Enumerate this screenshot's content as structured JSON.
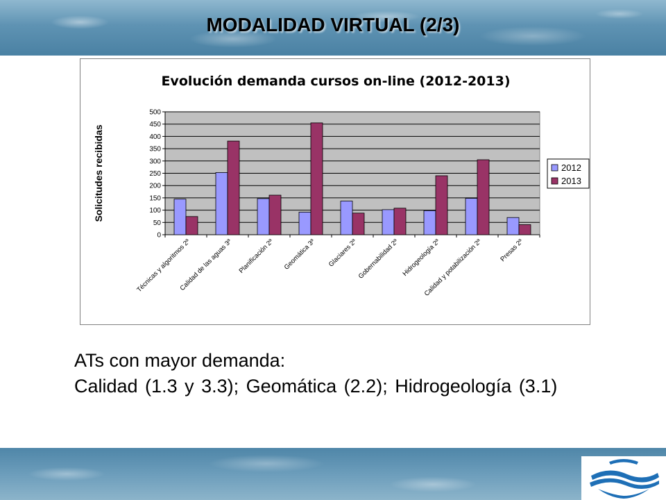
{
  "slide": {
    "title": "MODALIDAD VIRTUAL (2/3)",
    "summary_line1": "ATs con mayor demanda:",
    "summary_line2": "Calidad (1.3 y 3.3); Geomática (2.2); Hidrogeología (3.1)"
  },
  "colors": {
    "series_2012": "#9999ff",
    "series_2013": "#993366",
    "plot_bg": "#c0c0c0",
    "logo_blue": "#1e6fb6"
  },
  "logo": {
    "icon": "water-waves-logo-icon"
  },
  "chart_data": {
    "type": "bar",
    "title": "Evolución demanda cursos on-line (2012-2013)",
    "xlabel": "",
    "ylabel": "Solicitudes recibidas",
    "ylim": [
      0,
      500
    ],
    "yticks": [
      0,
      50,
      100,
      150,
      200,
      250,
      300,
      350,
      400,
      450,
      500
    ],
    "grid": true,
    "legend": "right",
    "categories": [
      "Técnicas y algoritmos 2ª",
      "Calidad de las aguas 3ª",
      "Planificación 2ª",
      "Geomática 3ª",
      "Glaciares 2ª",
      "Gobernabilidad 2ª",
      "Hidrogeología 2ª",
      "Calidad y potabilización 2ª",
      "Presas 2ª"
    ],
    "series": [
      {
        "name": "2012",
        "values": [
          145,
          253,
          147,
          92,
          137,
          102,
          98,
          148,
          70
        ]
      },
      {
        "name": "2013",
        "values": [
          74,
          381,
          161,
          455,
          88,
          108,
          240,
          305,
          41
        ]
      }
    ]
  }
}
